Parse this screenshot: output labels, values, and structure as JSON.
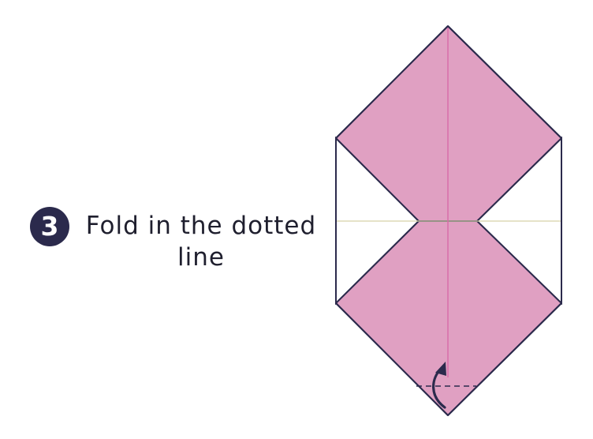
{
  "step": {
    "number": "3",
    "instruction": "Fold in the dotted line"
  },
  "colors": {
    "paper_front": "#e0a0c2",
    "paper_back": "#ffffff",
    "outline": "#2b2a4c",
    "crease_vertical": "#d86aa8",
    "crease_horizontal": "#d8d2a8",
    "arrow": "#2b2a4c",
    "badge": "#2b2a4c"
  },
  "icons": {
    "step_badge": "circled-number",
    "fold_arrow": "curved-fold-up-arrow",
    "fold_line": "dashed-valley-fold-line"
  }
}
